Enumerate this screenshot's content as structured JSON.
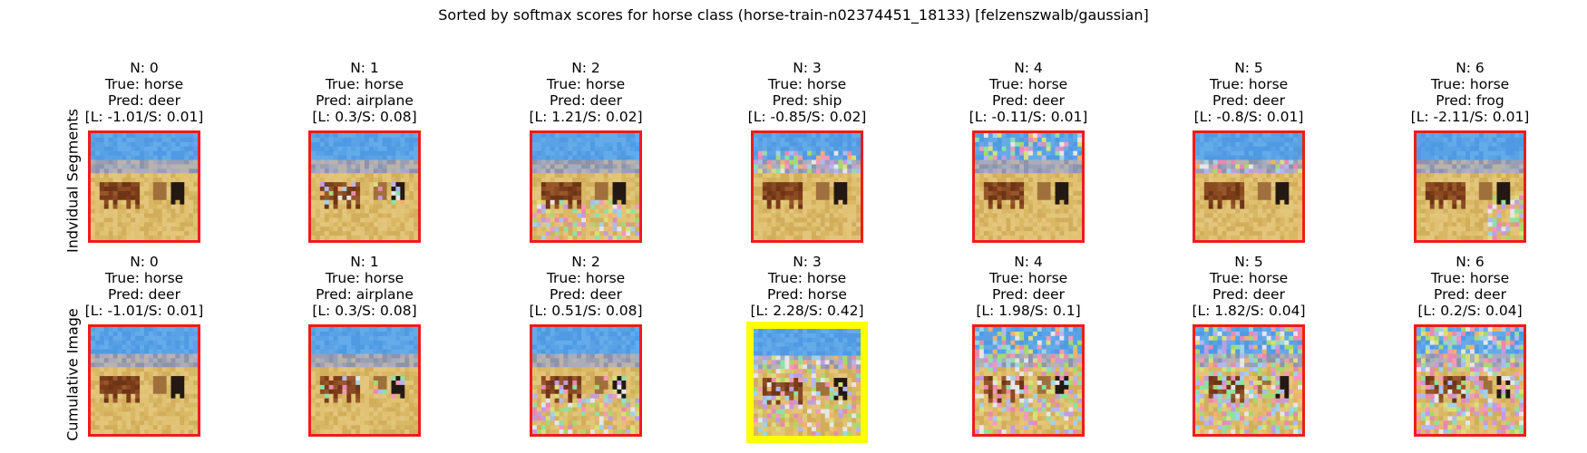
{
  "figure": {
    "title": "Sorted by softmax scores for horse class (horse-train-n02374451_18133) [felzenszwalb/gaussian]",
    "row_labels": [
      "Indvidual Segments",
      "Cumulative Image"
    ]
  },
  "colors": {
    "border_default": "#ee1c1c",
    "border_highlight": "#ffff00",
    "sky": "#5aa2e6",
    "mountain": "#9a9fb4",
    "field": "#d9b865",
    "horse_brown": "#7a3c19",
    "horse_dark": "#241812"
  },
  "chart_data": [
    {
      "type": "table",
      "row": "Indvidual Segments",
      "panels": [
        {
          "n_label": "N: 0",
          "true_label": "True: horse",
          "pred_label": "Pred: deer",
          "score_label": "[L: -1.01/S: 0.01]",
          "n": 0,
          "logit": -1.01,
          "softmax": 0.01,
          "noise": "none",
          "highlight": false
        },
        {
          "n_label": "N: 1",
          "true_label": "True: horse",
          "pred_label": "Pred: airplane",
          "score_label": "[L: 0.3/S: 0.08]",
          "n": 1,
          "logit": 0.3,
          "softmax": 0.08,
          "noise": "horses",
          "highlight": false
        },
        {
          "n_label": "N: 2",
          "true_label": "True: horse",
          "pred_label": "Pred: deer",
          "score_label": "[L: 1.21/S: 0.02]",
          "n": 2,
          "logit": 1.21,
          "softmax": 0.02,
          "noise": "ground",
          "highlight": false
        },
        {
          "n_label": "N: 3",
          "true_label": "True: horse",
          "pred_label": "Pred: ship",
          "score_label": "[L: -0.85/S: 0.02]",
          "n": 3,
          "logit": -0.85,
          "softmax": 0.02,
          "noise": "mountain",
          "highlight": false
        },
        {
          "n_label": "N: 4",
          "true_label": "True: horse",
          "pred_label": "Pred: deer",
          "score_label": "[L: -0.11/S: 0.01]",
          "n": 4,
          "logit": -0.11,
          "softmax": 0.01,
          "noise": "sky",
          "highlight": false
        },
        {
          "n_label": "N: 5",
          "true_label": "True: horse",
          "pred_label": "Pred: deer",
          "score_label": "[L: -0.8/S: 0.01]",
          "n": 5,
          "logit": -0.8,
          "softmax": 0.01,
          "noise": "mountain-light",
          "highlight": false
        },
        {
          "n_label": "N: 6",
          "true_label": "True: horse",
          "pred_label": "Pred: frog",
          "score_label": "[L: -2.11/S: 0.01]",
          "n": 6,
          "logit": -2.11,
          "softmax": 0.01,
          "noise": "right-ground",
          "highlight": false
        }
      ]
    },
    {
      "type": "table",
      "row": "Cumulative Image",
      "panels": [
        {
          "n_label": "N: 0",
          "true_label": "True: horse",
          "pred_label": "Pred: deer",
          "score_label": "[L: -1.01/S: 0.01]",
          "n": 0,
          "logit": -1.01,
          "softmax": 0.01,
          "noise": "none",
          "highlight": false
        },
        {
          "n_label": "N: 1",
          "true_label": "True: horse",
          "pred_label": "Pred: airplane",
          "score_label": "[L: 0.3/S: 0.08]",
          "n": 1,
          "logit": 0.3,
          "softmax": 0.08,
          "noise": "horses",
          "highlight": false
        },
        {
          "n_label": "N: 2",
          "true_label": "True: horse",
          "pred_label": "Pred: deer",
          "score_label": "[L: 0.51/S: 0.08]",
          "n": 2,
          "logit": 0.51,
          "softmax": 0.08,
          "noise": "horses+ground",
          "highlight": false
        },
        {
          "n_label": "N: 3",
          "true_label": "True: horse",
          "pred_label": "Pred: horse",
          "score_label": "[L: 2.28/S: 0.42]",
          "n": 3,
          "logit": 2.28,
          "softmax": 0.42,
          "noise": "horses+ground+mountain",
          "highlight": true
        },
        {
          "n_label": "N: 4",
          "true_label": "True: horse",
          "pred_label": "Pred: deer",
          "score_label": "[L: 1.98/S: 0.1]",
          "n": 4,
          "logit": 1.98,
          "softmax": 0.1,
          "noise": "horses+ground+mountain+sky",
          "highlight": false
        },
        {
          "n_label": "N: 5",
          "true_label": "True: horse",
          "pred_label": "Pred: deer",
          "score_label": "[L: 1.82/S: 0.04]",
          "n": 5,
          "logit": 1.82,
          "softmax": 0.04,
          "noise": "all-heavy",
          "highlight": false
        },
        {
          "n_label": "N: 6",
          "true_label": "True: horse",
          "pred_label": "Pred: deer",
          "score_label": "[L: 0.2/S: 0.04]",
          "n": 6,
          "logit": 0.2,
          "softmax": 0.04,
          "noise": "all-heavy",
          "highlight": false
        }
      ]
    }
  ]
}
